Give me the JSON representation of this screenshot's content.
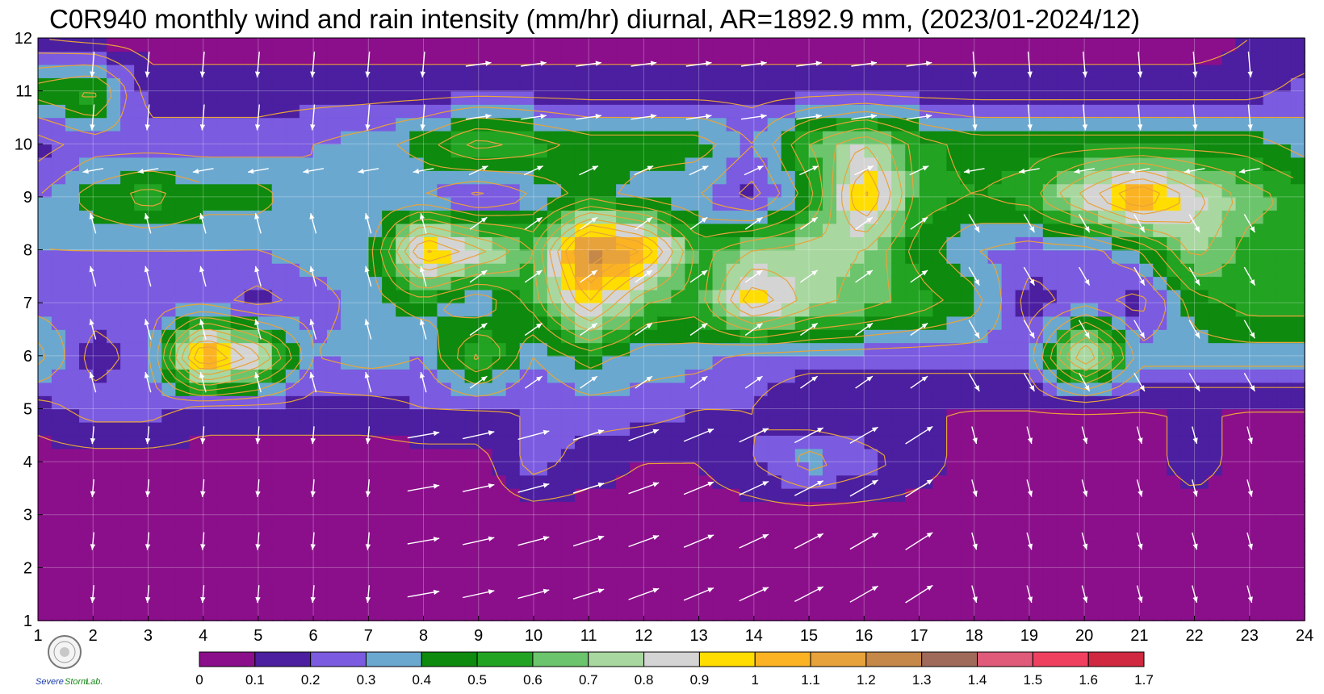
{
  "chart_data": {
    "type": "contour",
    "title": "C0R940 monthly wind and rain intensity (mm/hr) diurnal, AR=1892.9 mm, (2023/01-2024/12)",
    "xlabel": "",
    "ylabel": "",
    "x_ticks": [
      "1",
      "2",
      "3",
      "4",
      "5",
      "6",
      "7",
      "8",
      "9",
      "10",
      "11",
      "12",
      "13",
      "14",
      "15",
      "16",
      "17",
      "18",
      "19",
      "20",
      "21",
      "22",
      "23",
      "24"
    ],
    "y_ticks": [
      "1",
      "2",
      "3",
      "4",
      "5",
      "6",
      "7",
      "8",
      "9",
      "10",
      "11",
      "12"
    ],
    "xlim": [
      1,
      24
    ],
    "ylim": [
      1,
      12
    ],
    "grid": true,
    "colorbar": {
      "ticks": [
        "0",
        "0.1",
        "0.2",
        "0.3",
        "0.4",
        "0.5",
        "0.6",
        "0.7",
        "0.8",
        "0.9",
        "1",
        "1.1",
        "1.2",
        "1.3",
        "1.4",
        "1.5",
        "1.6",
        "1.7"
      ],
      "colors": [
        "#8b0f8b",
        "#4b1fa0",
        "#7b5be0",
        "#6ba8d0",
        "#0e8a0e",
        "#22a322",
        "#6cc46c",
        "#a8d8a0",
        "#d4d4d4",
        "#ffdd00",
        "#fbb324",
        "#e8a23c",
        "#c58848",
        "#a06a5a",
        "#e05a7a",
        "#f04060",
        "#d02840"
      ]
    },
    "rain_intensity_grid_mm_per_hr": [
      [
        0.05,
        0.05,
        0.05,
        0.05,
        0.05,
        0.05,
        0.05,
        0.05,
        0.05,
        0.05,
        0.05,
        0.05,
        0.05,
        0.05,
        0.05,
        0.05,
        0.05,
        0.05,
        0.05,
        0.05,
        0.05,
        0.05,
        0.05,
        0.05
      ],
      [
        0.05,
        0.05,
        0.05,
        0.05,
        0.05,
        0.05,
        0.05,
        0.05,
        0.05,
        0.05,
        0.05,
        0.05,
        0.05,
        0.05,
        0.05,
        0.05,
        0.05,
        0.05,
        0.05,
        0.05,
        0.05,
        0.05,
        0.05,
        0.05
      ],
      [
        0.05,
        0.05,
        0.05,
        0.05,
        0.05,
        0.05,
        0.05,
        0.05,
        0.05,
        0.05,
        0.05,
        0.05,
        0.05,
        0.05,
        0.05,
        0.05,
        0.05,
        0.05,
        0.05,
        0.05,
        0.05,
        0.05,
        0.05,
        0.05
      ],
      [
        0.05,
        0.05,
        0.05,
        0.05,
        0.05,
        0.05,
        0.05,
        0.05,
        0.05,
        0.25,
        0.15,
        0.1,
        0.1,
        0.2,
        0.35,
        0.25,
        0.15,
        0.05,
        0.05,
        0.05,
        0.05,
        0.15,
        0.05,
        0.05
      ],
      [
        0.15,
        0.25,
        0.25,
        0.15,
        0.15,
        0.15,
        0.15,
        0.2,
        0.2,
        0.2,
        0.25,
        0.25,
        0.2,
        0.2,
        0.1,
        0.1,
        0.1,
        0.1,
        0.1,
        0.1,
        0.1,
        0.1,
        0.1,
        0.1
      ],
      [
        0.45,
        0.15,
        0.25,
        1.2,
        0.85,
        0.3,
        0.35,
        0.3,
        0.65,
        0.3,
        0.45,
        0.35,
        0.35,
        0.25,
        0.25,
        0.25,
        0.25,
        0.25,
        0.25,
        0.95,
        0.35,
        0.35,
        0.35,
        0.35
      ],
      [
        0.25,
        0.25,
        0.25,
        0.25,
        0.15,
        0.25,
        0.35,
        0.45,
        0.3,
        0.55,
        1.0,
        0.6,
        0.55,
        1.0,
        0.75,
        0.65,
        0.55,
        0.45,
        0.15,
        0.25,
        0.15,
        0.45,
        0.55,
        0.55
      ],
      [
        0.3,
        0.3,
        0.3,
        0.3,
        0.3,
        0.35,
        0.35,
        1.05,
        0.85,
        0.6,
        1.3,
        1.1,
        0.55,
        0.7,
        0.75,
        0.7,
        0.45,
        0.3,
        0.25,
        0.25,
        0.4,
        0.75,
        0.55,
        0.55
      ],
      [
        0.3,
        0.45,
        0.55,
        0.45,
        0.45,
        0.3,
        0.3,
        0.3,
        0.15,
        0.3,
        0.45,
        0.35,
        0.3,
        0.15,
        0.45,
        1.05,
        0.55,
        0.5,
        0.55,
        0.85,
        1.15,
        0.85,
        0.65,
        0.55
      ],
      [
        0.15,
        0.25,
        0.25,
        0.25,
        0.25,
        0.3,
        0.35,
        0.45,
        0.65,
        0.55,
        0.45,
        0.45,
        0.45,
        0.3,
        0.6,
        0.8,
        0.55,
        0.45,
        0.45,
        0.45,
        0.45,
        0.45,
        0.45,
        0.35
      ],
      [
        0.45,
        0.55,
        0.15,
        0.15,
        0.15,
        0.15,
        0.15,
        0.15,
        0.15,
        0.15,
        0.15,
        0.15,
        0.15,
        0.15,
        0.15,
        0.15,
        0.15,
        0.15,
        0.15,
        0.15,
        0.15,
        0.15,
        0.15,
        0.25
      ],
      [
        0.1,
        0.05,
        0.05,
        0.05,
        0.05,
        0.05,
        0.05,
        0.05,
        0.05,
        0.05,
        0.05,
        0.05,
        0.05,
        0.05,
        0.05,
        0.05,
        0.05,
        0.05,
        0.05,
        0.05,
        0.05,
        0.05,
        0.1,
        0.1
      ]
    ]
  }
}
